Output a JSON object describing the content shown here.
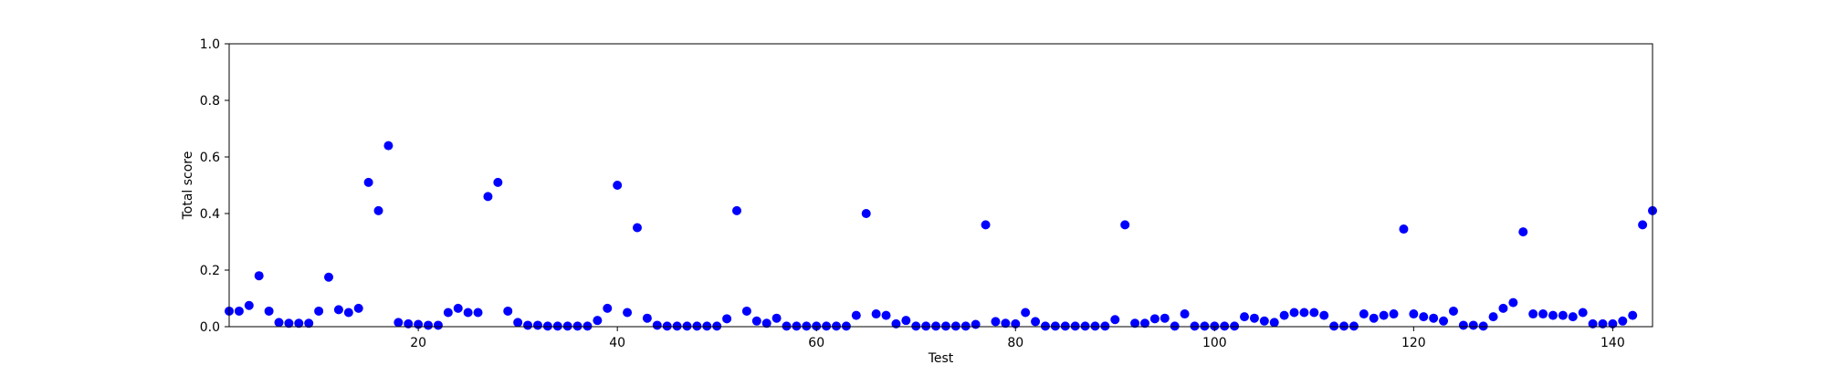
{
  "chart_data": {
    "type": "scatter",
    "title": "",
    "xlabel": "Test",
    "ylabel": "Total score",
    "xlim": [
      1,
      144
    ],
    "ylim": [
      0.0,
      1.0
    ],
    "xticks": [
      20,
      40,
      60,
      80,
      100,
      120,
      140
    ],
    "xtick_labels": [
      "20",
      "40",
      "60",
      "80",
      "100",
      "120",
      "140"
    ],
    "yticks": [
      0.0,
      0.2,
      0.4,
      0.6,
      0.8,
      1.0
    ],
    "ytick_labels": [
      "0.0",
      "0.2",
      "0.4",
      "0.6",
      "0.8",
      "1.0"
    ],
    "grid": false,
    "marker_color": "#0000ff",
    "series": [
      {
        "x": [
          1,
          2,
          3,
          4,
          5,
          6,
          7,
          8,
          9,
          10,
          11,
          12,
          13,
          14,
          15,
          16,
          17,
          18,
          19,
          20,
          21,
          22,
          23,
          24,
          25,
          26,
          27,
          28,
          29,
          30,
          31,
          32,
          33,
          34,
          35,
          36,
          37,
          38,
          39,
          40,
          41,
          42,
          43,
          44,
          45,
          46,
          47,
          48,
          49,
          50,
          51,
          52,
          53,
          54,
          55,
          56,
          57,
          58,
          59,
          60,
          61,
          62,
          63,
          64,
          65,
          66,
          67,
          68,
          69,
          70,
          71,
          72,
          73,
          74,
          75,
          76,
          77,
          78,
          79,
          80,
          81,
          82,
          83,
          84,
          85,
          86,
          87,
          88,
          89,
          90,
          91,
          92,
          93,
          94,
          95,
          96,
          97,
          98,
          99,
          100,
          101,
          102,
          103,
          104,
          105,
          106,
          107,
          108,
          109,
          110,
          111,
          112,
          113,
          114,
          115,
          116,
          117,
          118,
          119,
          120,
          121,
          122,
          123,
          124,
          125,
          126,
          127,
          128,
          129,
          130,
          131,
          132,
          133,
          134,
          135,
          136,
          137,
          138,
          139,
          140,
          141,
          142,
          143,
          144
        ],
        "y": [
          0.055,
          0.055,
          0.075,
          0.18,
          0.055,
          0.015,
          0.012,
          0.012,
          0.012,
          0.055,
          0.175,
          0.06,
          0.05,
          0.065,
          0.51,
          0.41,
          0.64,
          0.015,
          0.01,
          0.008,
          0.005,
          0.005,
          0.05,
          0.065,
          0.05,
          0.05,
          0.46,
          0.51,
          0.055,
          0.015,
          0.005,
          0.005,
          0.002,
          0.002,
          0.002,
          0.002,
          0.002,
          0.022,
          0.065,
          0.5,
          0.05,
          0.35,
          0.03,
          0.005,
          0.002,
          0.002,
          0.002,
          0.002,
          0.002,
          0.002,
          0.028,
          0.41,
          0.055,
          0.02,
          0.012,
          0.03,
          0.002,
          0.002,
          0.002,
          0.002,
          0.002,
          0.002,
          0.002,
          0.04,
          0.4,
          0.045,
          0.04,
          0.01,
          0.022,
          0.002,
          0.002,
          0.002,
          0.002,
          0.002,
          0.002,
          0.008,
          0.36,
          0.018,
          0.012,
          0.01,
          0.05,
          0.018,
          0.002,
          0.002,
          0.002,
          0.002,
          0.002,
          0.002,
          0.002,
          0.025,
          0.36,
          0.012,
          0.012,
          0.028,
          0.03,
          0.002,
          0.045,
          0.002,
          0.002,
          0.002,
          0.002,
          0.002,
          0.035,
          0.03,
          0.02,
          0.015,
          0.04,
          0.05,
          0.05,
          0.05,
          0.04,
          0.002,
          0.002,
          0.002,
          0.045,
          0.03,
          0.04,
          0.045,
          0.345,
          0.045,
          0.035,
          0.03,
          0.02,
          0.055,
          0.005,
          0.005,
          0.002,
          0.035,
          0.065,
          0.085,
          0.335,
          0.045,
          0.045,
          0.04,
          0.04,
          0.035,
          0.05,
          0.01,
          0.01,
          0.01,
          0.02,
          0.04,
          0.36,
          0.41
        ]
      }
    ]
  }
}
